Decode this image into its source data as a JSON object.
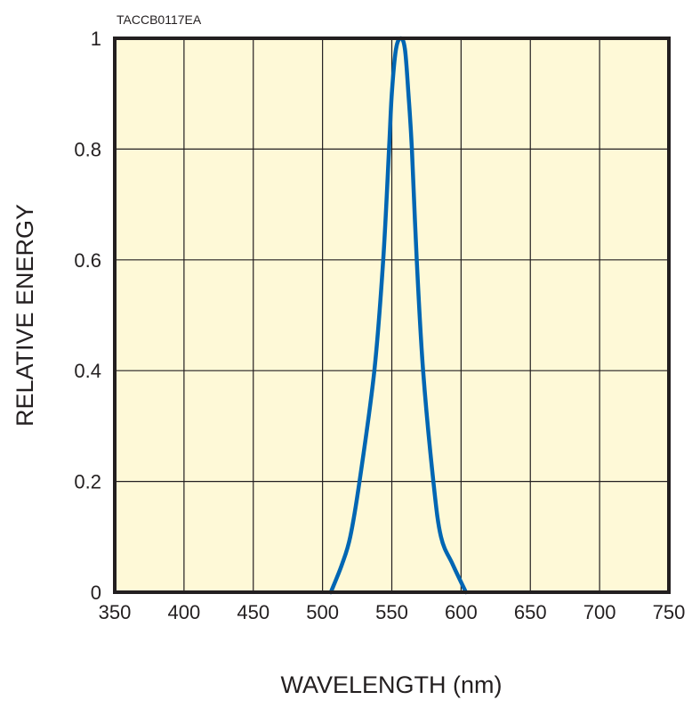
{
  "chart_data": {
    "type": "line",
    "figure_code": "TACCB0117EA",
    "xlabel": "WAVELENGTH (nm)",
    "ylabel": "RELATIVE ENERGY",
    "xlim": [
      350,
      750
    ],
    "ylim": [
      0,
      1
    ],
    "xticks": [
      "350",
      "400",
      "450",
      "500",
      "550",
      "600",
      "650",
      "700",
      "750"
    ],
    "yticks": [
      "0",
      "0.2",
      "0.4",
      "0.6",
      "0.8",
      "1"
    ],
    "grid": true,
    "colors": {
      "background": "#fef9d7",
      "line": "#0066b3",
      "grid": "#231f20"
    },
    "series": [
      {
        "name": "relative energy",
        "x": [
          506,
          514,
          520,
          526.7,
          537.4,
          543.8,
          548,
          550,
          553,
          556.5,
          559.5,
          562,
          564.5,
          568,
          572.6,
          580,
          585.5,
          594,
          603.5
        ],
        "y": [
          0,
          0.05,
          0.1,
          0.2,
          0.4,
          0.6,
          0.8,
          0.9,
          0.98,
          1.0,
          0.98,
          0.9,
          0.8,
          0.6,
          0.4,
          0.2,
          0.1,
          0.05,
          0
        ]
      }
    ]
  }
}
